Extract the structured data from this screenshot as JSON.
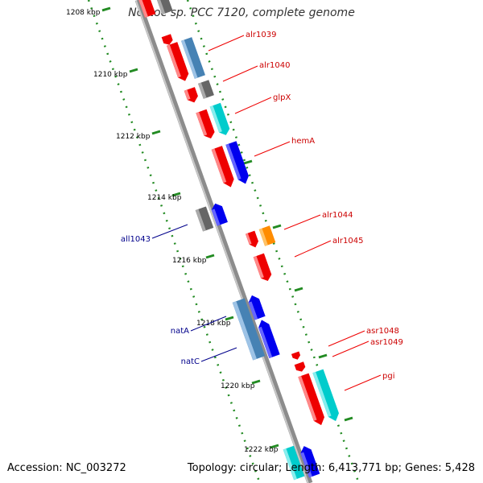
{
  "title": "Nostoc sp. PCC 7120, complete genome",
  "footer": {
    "accession": "Accession: NC_003272",
    "stats": "Topology: circular; Length: 6,413,771 bp; Genes: 5,428"
  },
  "axis": {
    "unit": "kbp",
    "ticks": [
      "1208 kbp",
      "1210 kbp",
      "1212 kbp",
      "1214 kbp",
      "1216 kbp",
      "1218 kbp",
      "1220 kbp",
      "1222 kbp"
    ]
  },
  "colors": {
    "backbone": "#8c8c8c",
    "forward_label": "#cc0000",
    "reverse_label": "#00008b",
    "ruler": "#228b22",
    "gene_red": "#ee0000",
    "gene_gray": "#666666",
    "gene_steel": "#4682b4",
    "gene_cyan": "#00cccc",
    "gene_blue": "#0000ee",
    "gene_orange": "#ff8c00"
  },
  "gene_labels": {
    "forward": [
      "alr1039",
      "alr1040",
      "glpX",
      "hemA",
      "alr1044",
      "alr1045",
      "asr1048",
      "asr1049",
      "pgi"
    ],
    "reverse": [
      "all1043",
      "natA",
      "natC"
    ]
  }
}
